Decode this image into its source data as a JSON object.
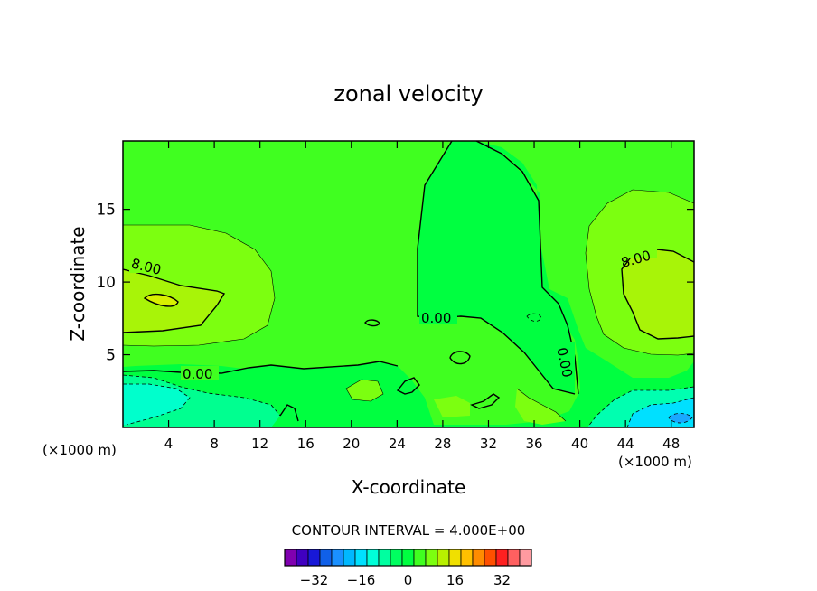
{
  "chart_data": {
    "type": "contour",
    "title": "zonal velocity",
    "xlabel": "X-coordinate",
    "ylabel": "Z-coordinate",
    "x_unit_left": "(×1000 m)",
    "x_unit_right": "(×1000 m)",
    "xlim": [
      0,
      50
    ],
    "ylim": [
      0,
      19.7
    ],
    "x_ticks": [
      4,
      8,
      12,
      16,
      20,
      24,
      28,
      32,
      36,
      40,
      44,
      48
    ],
    "x_tick_labels": [
      "4",
      "8",
      "12",
      "16",
      "20",
      "24",
      "28",
      "32",
      "36",
      "40",
      "44",
      "48"
    ],
    "y_ticks": [
      5,
      10,
      15
    ],
    "y_tick_labels": [
      "5",
      "10",
      "15"
    ],
    "contour_interval_text": "CONTOUR INTERVAL = 4.000E+00",
    "contour_labels": [
      {
        "text": "8.00",
        "x": 2.2,
        "z": 10.8
      },
      {
        "text": "8.00",
        "x": 45.7,
        "z": 11.5
      },
      {
        "text": "0.00",
        "x": 6.9,
        "z": 3.7
      },
      {
        "text": "0.00",
        "x": 27.8,
        "z": 7.5
      },
      {
        "text": "0.00",
        "x": 39.2,
        "z": 4.6
      }
    ],
    "regions": [
      {
        "level": 4,
        "note": "broad background band"
      },
      {
        "level": 0,
        "note": "central column x≈26–37 km and bands near ground"
      },
      {
        "level": 8,
        "note": "left jet core x≈0–12 km, z≈6–14"
      },
      {
        "level": 8,
        "note": "right jet core x≈40–50 km, z≈6–14"
      },
      {
        "level": 12,
        "note": "small maximum near x≈3, z≈8.7"
      },
      {
        "level": -4,
        "note": "low-level flow near x≈0–12 km"
      },
      {
        "level": -8,
        "note": "low-level flow near x≈0–5 km"
      },
      {
        "level": -8,
        "note": "low-level flow near x≈44–50 km"
      },
      {
        "level": -12,
        "note": "small minimum near x≈47, z≈0.8"
      }
    ],
    "colorbar": {
      "tick_labels": [
        "-32",
        "-16",
        "0",
        "16",
        "32"
      ],
      "tick_values": [
        -32,
        -16,
        0,
        16,
        32
      ],
      "levels": [
        -38,
        -34,
        -30,
        -26,
        -22,
        -18,
        -14,
        -10,
        -6,
        -2,
        2,
        6,
        10,
        14,
        18,
        22,
        26,
        30,
        34,
        38
      ],
      "colors": [
        "#8000b0",
        "#4000c0",
        "#1818d8",
        "#1060e8",
        "#1a90ff",
        "#00b8ff",
        "#00e0ff",
        "#00ffd8",
        "#00ffa0",
        "#00ff60",
        "#00ff40",
        "#40ff20",
        "#7cff10",
        "#b8f000",
        "#f0e000",
        "#ffc000",
        "#ff8c00",
        "#ff5000",
        "#ff2020",
        "#ff6060",
        "#ff9aa0"
      ]
    },
    "grid": false,
    "legend": "bottom-center colorbar"
  }
}
